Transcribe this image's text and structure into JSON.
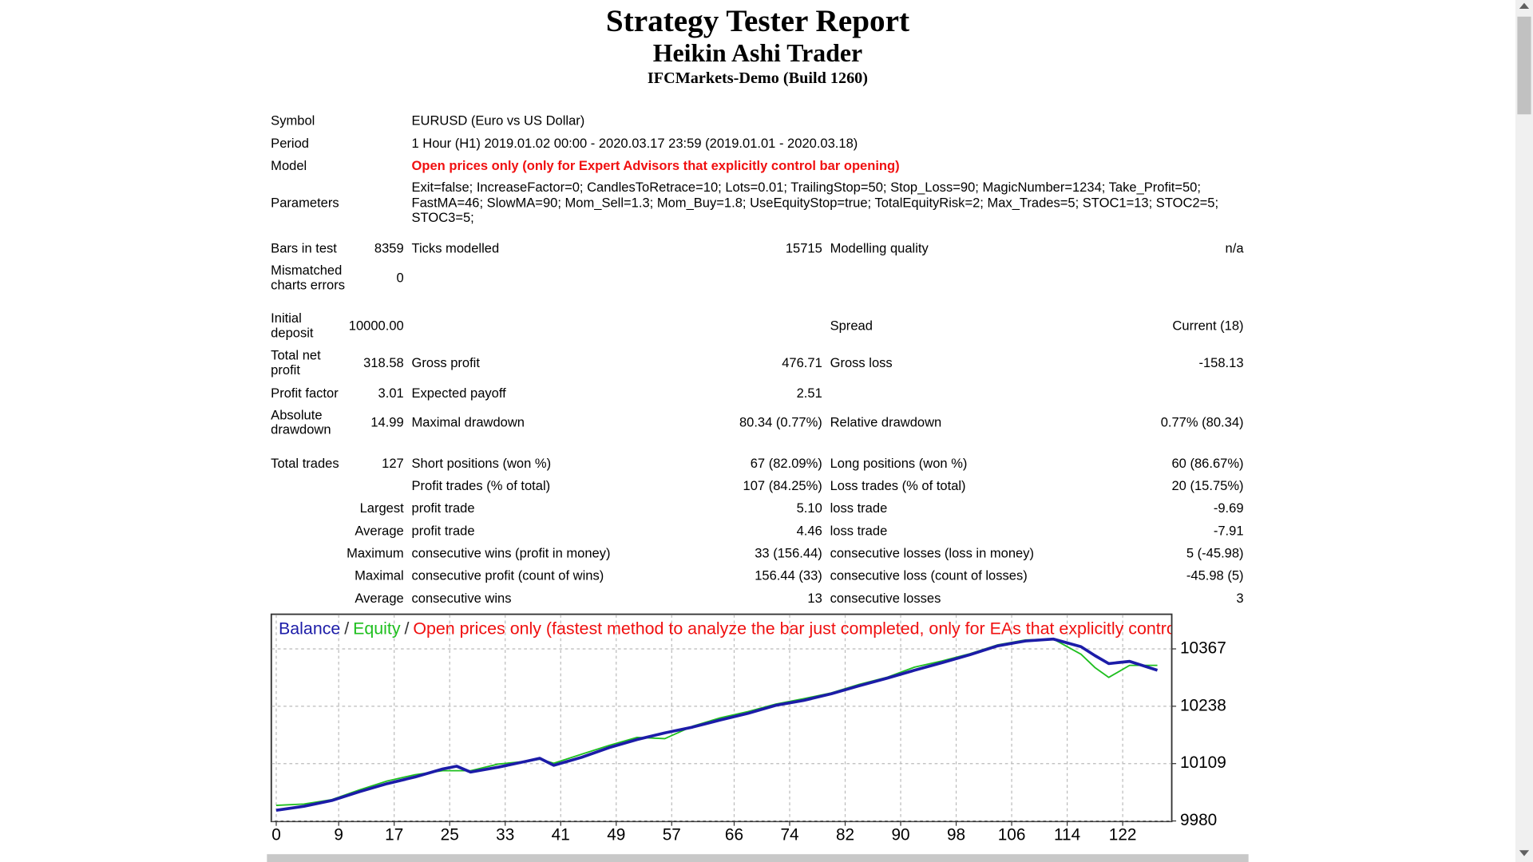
{
  "header": {
    "title": "Strategy Tester Report",
    "subtitle": "Heikin Ashi Trader",
    "server": "IFCMarkets-Demo (Build 1260)"
  },
  "info": [
    {
      "label": "Symbol",
      "value": "EURUSD (Euro vs US Dollar)"
    },
    {
      "label": "Period",
      "value": "1 Hour (H1) 2019.01.02 00:00 - 2020.03.17 23:59 (2019.01.01 - 2020.03.18)"
    },
    {
      "label": "Model",
      "value": "Open prices only (only for Expert Advisors that explicitly control bar opening)"
    },
    {
      "label": "Parameters",
      "lines": [
        "Exit=false; IncreaseFactor=0; CandlesToRetrace=10; Lots=0.01; TrailingStop=50; Stop_Loss=90; MagicNumber=1234; Take_Profit=50;",
        "FastMA=46; SlowMA=90; Mom_Sell=1.3; Mom_Buy=1.8; UseEquityStop=true; TotalEquityRisk=2; Max_Trades=5; STOC1=13; STOC2=5;",
        "STOC3=5;"
      ]
    }
  ],
  "stats": [
    {
      "label": "Bars in test",
      "value": "8359",
      "label2": "Ticks modelled",
      "value2": "15715",
      "label3": "Modelling quality",
      "value3": "n/a"
    },
    {
      "label": "Mismatched charts errors",
      "value": "0"
    },
    {
      "label": "Initial deposit",
      "value": "10000.00",
      "label3": "Spread",
      "value3": "Current (18)"
    },
    {
      "label": "Total net profit",
      "value": "318.58",
      "label2": "Gross profit",
      "value2": "476.71",
      "label3": "Gross loss",
      "value3": "-158.13"
    },
    {
      "label": "Profit factor",
      "value": "3.01",
      "label2": "Expected payoff",
      "value2": "2.51"
    },
    {
      "label": "Absolute drawdown",
      "value": "14.99",
      "label2": "Maximal drawdown",
      "value2": "80.34 (0.77%)",
      "label3": "Relative drawdown",
      "value3": "0.77% (80.34)"
    },
    {
      "label": "Total trades",
      "value": "127",
      "label2": "Short positions (won %)",
      "value2": "67 (82.09%)",
      "label3": "Long positions (won %)",
      "value3": "60 (86.67%)"
    },
    {
      "label2": "Profit trades (% of total)",
      "value2": "107 (84.25%)",
      "label3": "Loss trades (% of total)",
      "value3": "20 (15.75%)"
    },
    {
      "value": "Largest",
      "label2": "profit trade",
      "value2": "5.10",
      "label3": "loss trade",
      "value3": "-9.69"
    },
    {
      "value": "Average",
      "label2": "profit trade",
      "value2": "4.46",
      "label3": "loss trade",
      "value3": "-7.91"
    },
    {
      "value": "Maximum",
      "label2": "consecutive wins (profit in money)",
      "value2": "33 (156.44)",
      "label3": "consecutive losses (loss in money)",
      "value3": "5 (-45.98)"
    },
    {
      "value": "Maximal",
      "label2": "consecutive profit (count of wins)",
      "value2": "156.44 (33)",
      "label3": "consecutive loss (count of losses)",
      "value3": "-45.98 (5)"
    },
    {
      "value": "Average",
      "label2": "consecutive wins",
      "value2": "13",
      "label3": "consecutive losses",
      "value3": "3"
    }
  ],
  "chart_data": {
    "type": "line",
    "legend_separator": "/",
    "model_note": "Open prices only (fastest method to analyze the bar just completed, only for EAs that explicitly control b",
    "x": [
      0,
      4,
      8,
      12,
      16,
      20,
      24,
      26,
      28,
      32,
      36,
      38,
      40,
      44,
      48,
      52,
      56,
      60,
      64,
      68,
      72,
      76,
      80,
      84,
      88,
      92,
      96,
      100,
      104,
      108,
      112,
      116,
      118,
      120,
      123,
      127
    ],
    "series": [
      {
        "name": "Balance",
        "color": "#1c1ca8",
        "values": [
          10004,
          10013,
          10026,
          10046,
          10064,
          10079,
          10097,
          10103,
          10090,
          10101,
          10114,
          10121,
          10105,
          10123,
          10145,
          10163,
          10178,
          10191,
          10207,
          10222,
          10240,
          10251,
          10266,
          10284,
          10301,
          10319,
          10336,
          10354,
          10374,
          10385,
          10389,
          10372,
          10352,
          10334,
          10339,
          10319
        ]
      },
      {
        "name": "Equity",
        "color": "#1fbf1f",
        "values": [
          10015,
          10018,
          10028,
          10050,
          10070,
          10084,
          10093,
          10093,
          10093,
          10108,
          10114,
          10119,
          10110,
          10130,
          10150,
          10168,
          10165,
          10193,
          10212,
          10226,
          10243,
          10255,
          10268,
          10287,
          10303,
          10326,
          10340,
          10356,
          10376,
          10387,
          10389,
          10355,
          10325,
          10303,
          10330,
          10330
        ]
      }
    ],
    "xlim": [
      -0.5,
      129
    ],
    "xticks": [
      0,
      9,
      17,
      25,
      33,
      41,
      49,
      57,
      66,
      74,
      82,
      90,
      98,
      106,
      114,
      122
    ],
    "ylim": [
      9980,
      10446
    ],
    "yticks": [
      9980,
      10109,
      10238,
      10367
    ],
    "grid": true
  }
}
